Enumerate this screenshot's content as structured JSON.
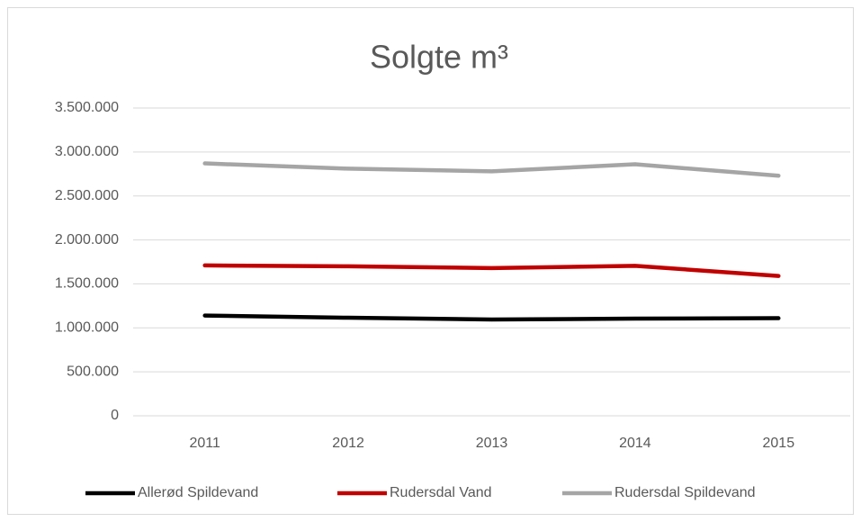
{
  "chart_data": {
    "type": "line",
    "title": "Solgte m³",
    "categories": [
      "2011",
      "2012",
      "2013",
      "2014",
      "2015"
    ],
    "series": [
      {
        "name": "Allerød Spildevand",
        "color": "#000000",
        "values": [
          1140000,
          1115000,
          1095000,
          1105000,
          1110000
        ]
      },
      {
        "name": "Rudersdal Vand",
        "color": "#c00000",
        "values": [
          1710000,
          1700000,
          1680000,
          1705000,
          1590000
        ]
      },
      {
        "name": "Rudersdal Spildevand",
        "color": "#a5a5a5",
        "values": [
          2870000,
          2810000,
          2780000,
          2860000,
          2730000
        ]
      }
    ],
    "ylim": [
      0,
      3500000
    ],
    "yticks": [
      0,
      {
        "value": 500000,
        "label": "500.000"
      },
      {
        "value": 1000000,
        "label": "1.000.000"
      },
      {
        "value": 1500000,
        "label": "1.500.000"
      },
      {
        "value": 2000000,
        "label": "2.000.000"
      },
      {
        "value": 2500000,
        "label": "2.500.000"
      },
      {
        "value": 3000000,
        "label": "3.000.000"
      },
      {
        "value": 3500000,
        "label": "3.500.000"
      }
    ],
    "grid": true,
    "legend": "bottom"
  }
}
